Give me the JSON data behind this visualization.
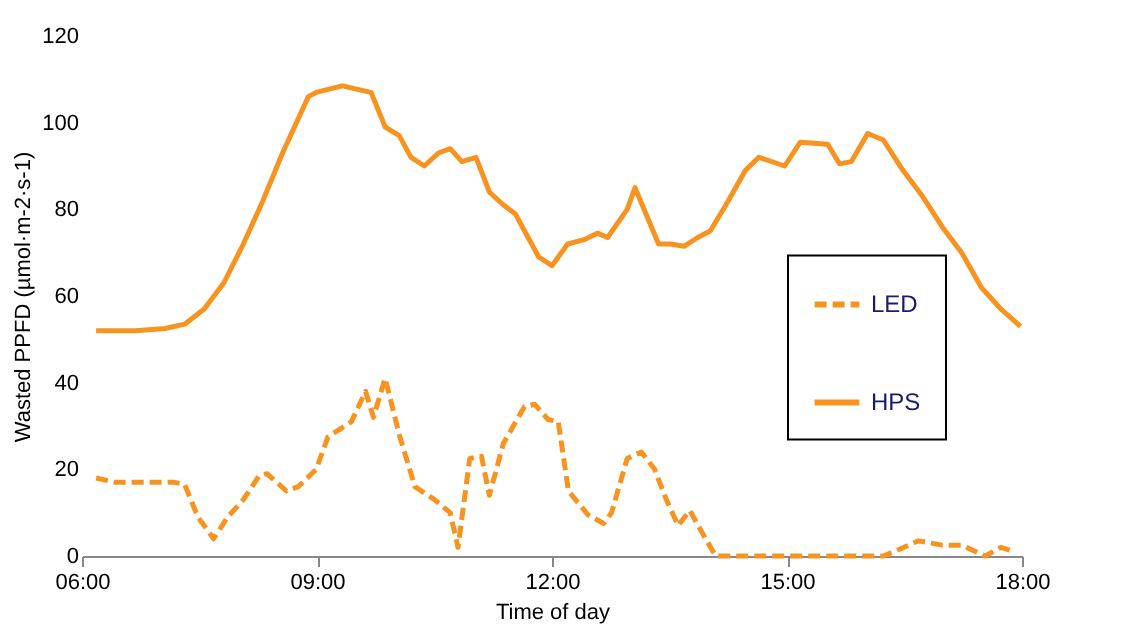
{
  "chart_data": {
    "type": "line",
    "xlabel": "Time of day",
    "ylabel": "Wasted PPFD (µmol·m-2·s-1)",
    "xlim": [
      6,
      18
    ],
    "xticks": [
      {
        "value": 6,
        "label": "06:00"
      },
      {
        "value": 9,
        "label": "09:00"
      },
      {
        "value": 12,
        "label": "12:00"
      },
      {
        "value": 15,
        "label": "15:00"
      },
      {
        "value": 18,
        "label": "18:00"
      }
    ],
    "ylim": [
      0,
      120
    ],
    "yticks": [
      0,
      20,
      40,
      60,
      80,
      100,
      120
    ],
    "grid": false,
    "legend": "right",
    "marker": "none",
    "series": [
      {
        "name": "LED",
        "color": "#f7931e",
        "line_style": "dashed",
        "x": [
          6.18,
          6.43,
          6.93,
          7.18,
          7.31,
          7.48,
          7.68,
          7.86,
          8.06,
          8.26,
          8.36,
          8.61,
          8.76,
          8.99,
          9.14,
          9.44,
          9.62,
          9.72,
          9.87,
          10.05,
          10.25,
          10.5,
          10.7,
          10.8,
          10.95,
          11.1,
          11.2,
          11.38,
          11.65,
          11.78,
          11.95,
          12.08,
          12.21,
          12.46,
          12.66,
          12.76,
          12.96,
          13.14,
          13.31,
          13.46,
          13.61,
          13.76,
          13.96,
          14.09,
          14.72,
          16.23,
          16.43,
          16.68,
          16.98,
          17.23,
          17.53,
          17.73,
          17.91
        ],
        "values": [
          18,
          17,
          17,
          17,
          16.5,
          9,
          4,
          9,
          13,
          18.5,
          19,
          15,
          16,
          20,
          27.5,
          31,
          38,
          32,
          41,
          28,
          16,
          13,
          10,
          2,
          22.5,
          23,
          14,
          26,
          34.5,
          35,
          31.5,
          31,
          15,
          9.5,
          7.5,
          10,
          22.5,
          24,
          20,
          13,
          7,
          10.5,
          4,
          0,
          0,
          0,
          1.5,
          3.5,
          2.5,
          2.5,
          0,
          2,
          1
        ]
      },
      {
        "name": "HPS",
        "color": "#f7931e",
        "line_style": "solid",
        "x": [
          6.18,
          6.68,
          7.06,
          7.31,
          7.56,
          7.81,
          8.06,
          8.31,
          8.56,
          8.89,
          8.99,
          9.32,
          9.69,
          9.87,
          10.05,
          10.2,
          10.37,
          10.55,
          10.7,
          10.85,
          11.03,
          11.2,
          11.38,
          11.53,
          11.83,
          12.0,
          12.2,
          12.41,
          12.58,
          12.71,
          12.96,
          13.06,
          13.36,
          13.51,
          13.69,
          13.86,
          14.02,
          14.22,
          14.47,
          14.64,
          14.97,
          15.17,
          15.52,
          15.67,
          15.82,
          16.03,
          16.23,
          16.48,
          16.73,
          16.98,
          17.23,
          17.48,
          17.73,
          17.98
        ],
        "values": [
          52,
          52,
          52.5,
          53.5,
          57,
          63,
          72,
          82,
          93,
          106,
          107,
          108.5,
          107,
          99,
          97,
          92,
          90,
          93,
          94,
          91,
          92,
          84,
          81,
          79,
          69,
          67,
          72,
          73,
          74.5,
          73.5,
          80,
          85,
          72,
          72,
          71.5,
          73.5,
          75,
          81,
          89,
          92,
          90,
          95.5,
          95,
          90.5,
          91,
          97.5,
          96,
          89,
          83,
          76,
          70,
          62,
          57,
          53
        ]
      }
    ]
  }
}
